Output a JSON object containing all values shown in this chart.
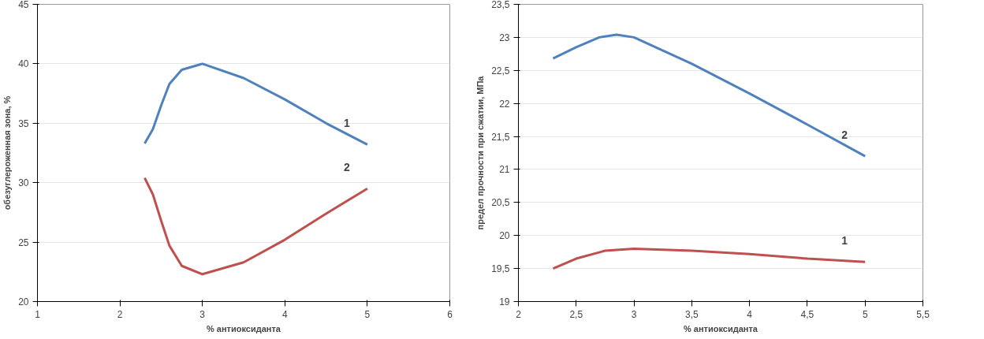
{
  "chart_data": [
    {
      "type": "line",
      "xlabel": "% антиоксиданта",
      "ylabel": "обезуглероженная зона, %",
      "xlim": [
        1,
        6
      ],
      "xticks": [
        1,
        2,
        3,
        4,
        5,
        6
      ],
      "ylim": [
        20,
        45
      ],
      "yticks": [
        20,
        25,
        30,
        35,
        40,
        45
      ],
      "grid": "y",
      "legend": false,
      "marker": "none",
      "line_style": "solid",
      "series": [
        {
          "name": "1",
          "color": "#4f81bd",
          "x": [
            2.3,
            2.4,
            2.5,
            2.6,
            2.75,
            3,
            3.5,
            4,
            4.5,
            5
          ],
          "values": [
            33.3,
            34.5,
            36.5,
            38.3,
            39.5,
            40,
            38.8,
            37,
            35,
            33.2
          ]
        },
        {
          "name": "2",
          "color": "#c0504d",
          "x": [
            2.3,
            2.4,
            2.5,
            2.6,
            2.75,
            3,
            3.5,
            4,
            4.5,
            5
          ],
          "values": [
            30.4,
            29,
            26.8,
            24.7,
            23,
            22.3,
            23.3,
            25.2,
            27.4,
            29.5
          ]
        }
      ]
    },
    {
      "type": "line",
      "xlabel": "% антиоксиданта",
      "ylabel": "предел прочности при сжатии, МПа",
      "xlim": [
        2,
        5.5
      ],
      "xticks": [
        2,
        {
          "value": 2.5,
          "label": "2,5"
        },
        3,
        {
          "value": 3.5,
          "label": "3,5"
        },
        4,
        {
          "value": 4.5,
          "label": "4,5"
        },
        5,
        {
          "value": 5.5,
          "label": "5,5"
        }
      ],
      "ylim": [
        19,
        23.5
      ],
      "yticks": [
        19,
        {
          "value": 19.5,
          "label": "19,5"
        },
        20,
        {
          "value": 20.5,
          "label": "20,5"
        },
        21,
        {
          "value": 21.5,
          "label": "21,5"
        },
        22,
        {
          "value": 22.5,
          "label": "22,5"
        },
        23,
        {
          "value": 23.5,
          "label": "23,5"
        }
      ],
      "grid": "y",
      "legend": false,
      "marker": "none",
      "line_style": "solid",
      "series": [
        {
          "name": "2",
          "color": "#4f81bd",
          "x": [
            2.3,
            2.5,
            2.7,
            2.85,
            3,
            3.5,
            4,
            4.5,
            5
          ],
          "values": [
            22.68,
            22.85,
            23.0,
            23.04,
            23.0,
            22.6,
            22.15,
            21.68,
            21.2
          ]
        },
        {
          "name": "1",
          "color": "#c0504d",
          "x": [
            2.3,
            2.5,
            2.75,
            3,
            3.5,
            4,
            4.5,
            5
          ],
          "values": [
            19.5,
            19.65,
            19.77,
            19.8,
            19.77,
            19.72,
            19.65,
            19.6
          ]
        }
      ]
    }
  ]
}
